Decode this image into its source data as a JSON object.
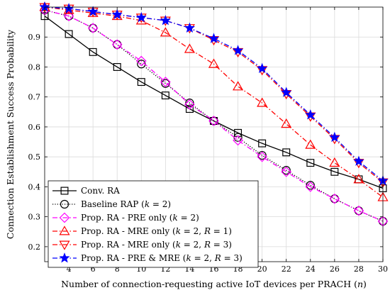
{
  "chart_data": {
    "type": "line",
    "title": "",
    "xlabel": "Number of connection-requesting active IoT devices per PRACH (n)",
    "ylabel": "Connection Establishment Success Probability",
    "xlim": [
      2,
      30
    ],
    "ylim": [
      0.15,
      1.0
    ],
    "xticks": [
      4,
      6,
      8,
      10,
      12,
      14,
      16,
      18,
      20,
      22,
      24,
      26,
      28,
      30
    ],
    "yticks": [
      0.2,
      0.3,
      0.4,
      0.5,
      0.6,
      0.7,
      0.8,
      0.9
    ],
    "grid": true,
    "legend_position": "bottom-left",
    "x": [
      2,
      4,
      6,
      8,
      10,
      12,
      14,
      16,
      18,
      20,
      22,
      24,
      26,
      28,
      30
    ],
    "series": [
      {
        "name": "Conv. RA",
        "color": "#000000",
        "dash": "solid",
        "marker": "square",
        "values": [
          0.97,
          0.91,
          0.85,
          0.8,
          0.75,
          0.705,
          0.66,
          0.62,
          0.58,
          0.545,
          0.515,
          0.48,
          0.45,
          0.425,
          0.395
        ]
      },
      {
        "name": "Baseline RAP (k = 2)",
        "color": "#000000",
        "dash": "dotted",
        "marker": "circle",
        "values": [
          0.99,
          0.97,
          0.93,
          0.875,
          0.81,
          0.745,
          0.68,
          0.62,
          0.565,
          0.505,
          0.455,
          0.405,
          0.36,
          0.32,
          0.285
        ]
      },
      {
        "name": "Prop. RA - PRE only (k = 2)",
        "color": "#ff00ff",
        "dash": "dashdot",
        "marker": "diamond",
        "values": [
          0.99,
          0.97,
          0.93,
          0.875,
          0.82,
          0.75,
          0.675,
          0.62,
          0.555,
          0.5,
          0.45,
          0.4,
          0.36,
          0.32,
          0.285
        ]
      },
      {
        "name": "Prop. RA - MRE only (k = 2, R = 1)",
        "color": "#ff0000",
        "dash": "dashdot",
        "marker": "triangle-up",
        "values": [
          1.0,
          0.99,
          0.98,
          0.97,
          0.955,
          0.915,
          0.86,
          0.81,
          0.735,
          0.68,
          0.61,
          0.54,
          0.48,
          0.425,
          0.365
        ]
      },
      {
        "name": "Prop. RA - MRE only (k = 2, R = 3)",
        "color": "#ff0000",
        "dash": "dashdot",
        "marker": "triangle-down",
        "values": [
          1.0,
          0.995,
          0.985,
          0.975,
          0.965,
          0.955,
          0.93,
          0.89,
          0.85,
          0.79,
          0.71,
          0.635,
          0.56,
          0.48,
          0.415
        ]
      },
      {
        "name": "Prop. RA - PRE & MRE (k = 2, R = 3)",
        "color": "#0000ff",
        "dash": "dashdot",
        "marker": "star",
        "values": [
          1.0,
          0.995,
          0.985,
          0.975,
          0.965,
          0.955,
          0.93,
          0.895,
          0.855,
          0.795,
          0.715,
          0.64,
          0.565,
          0.485,
          0.42
        ]
      }
    ]
  }
}
